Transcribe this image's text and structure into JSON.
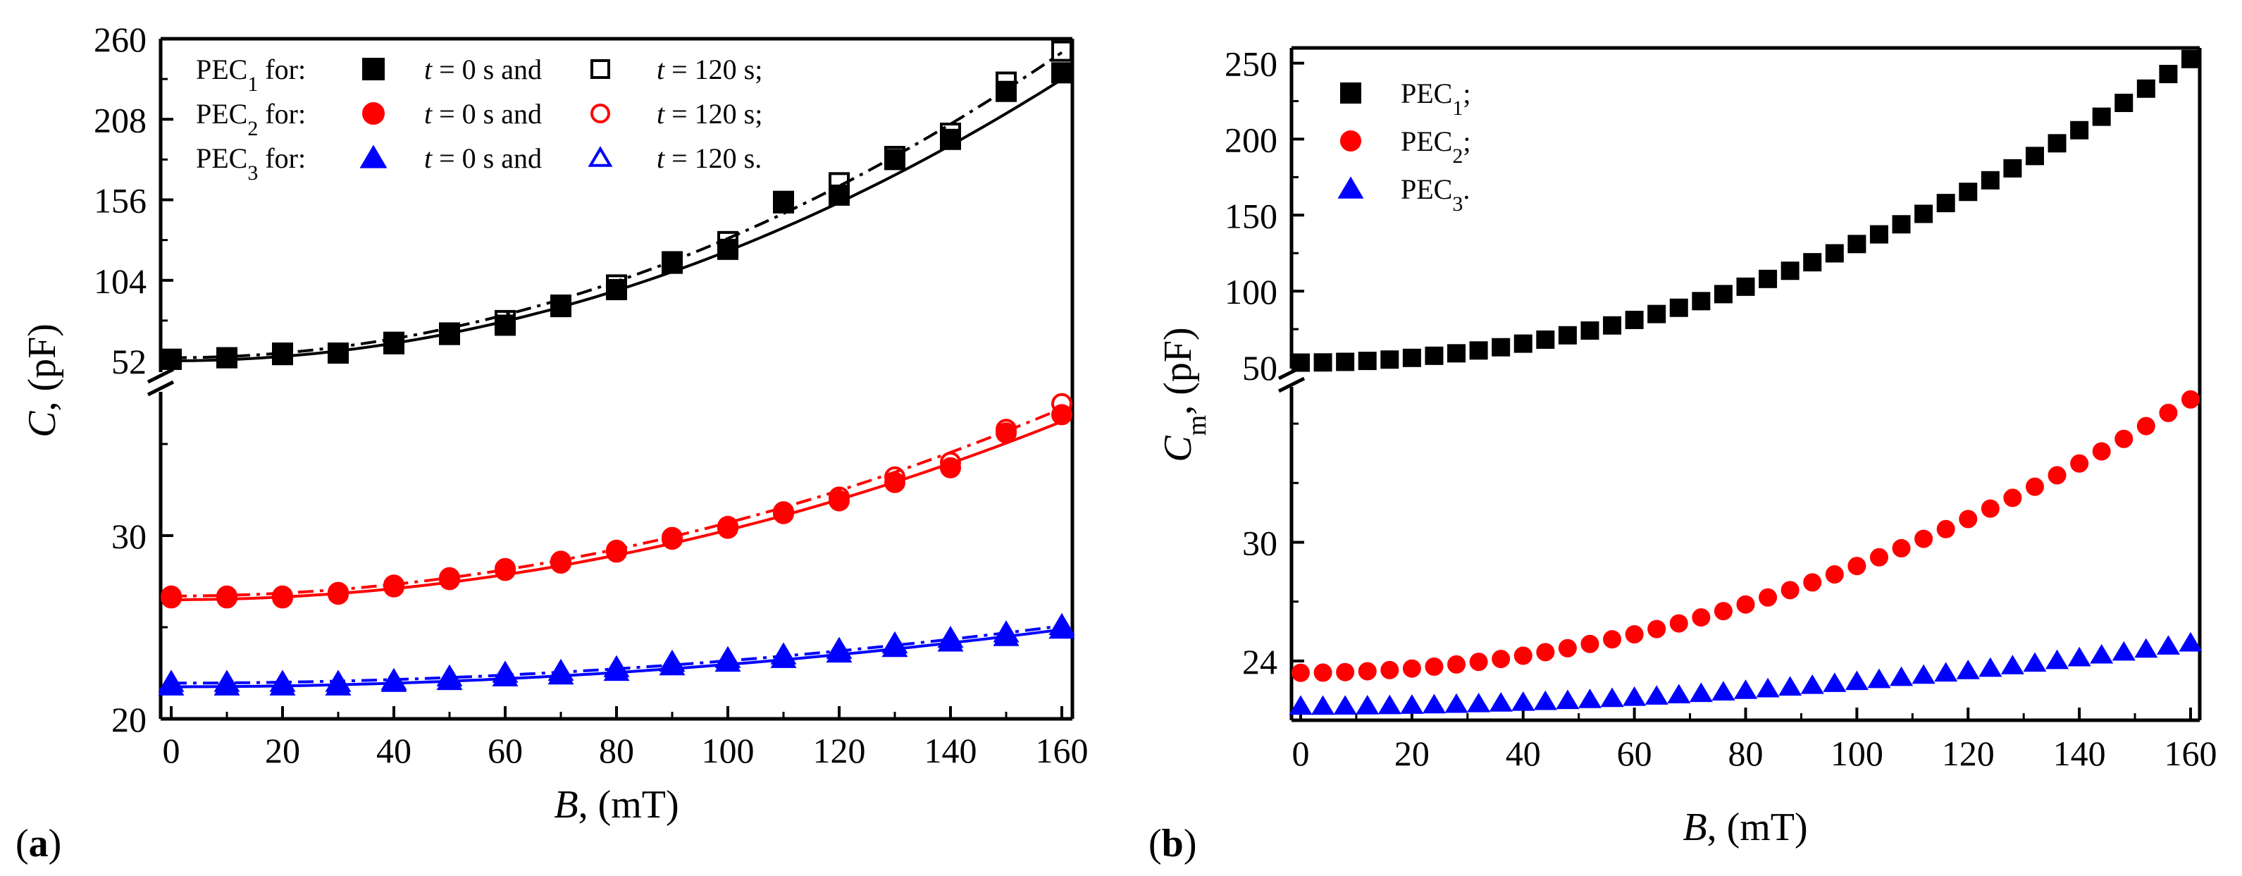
{
  "chart_data": [
    {
      "panel": "(a)",
      "type": "scatter",
      "xlabel": {
        "var": "B",
        "rest": ", (mT)"
      },
      "ylabel": {
        "var": "C",
        "rest": ", (pF)"
      },
      "xlim": [
        0,
        160
      ],
      "xticks": [
        "0",
        "20",
        "40",
        "60",
        "80",
        "100",
        "120",
        "140",
        "160"
      ],
      "upper": {
        "ylim": [
          52,
          260
        ],
        "yticks": [
          "52",
          "104",
          "156",
          "208",
          "260"
        ]
      },
      "lower": {
        "ylim": [
          20,
          38
        ],
        "yticks": [
          "20",
          "30"
        ]
      },
      "x": [
        0,
        10,
        20,
        30,
        40,
        50,
        60,
        70,
        80,
        90,
        100,
        110,
        120,
        130,
        140,
        150,
        160
      ],
      "legend": [
        {
          "label_main": "PEC",
          "label_sub": "1",
          "label_rest": " for:",
          "t_var": "t",
          "t0_rest": " = 0 s and",
          "t120_rest": " = 120 s;",
          "color": "#000000",
          "marker": "square"
        },
        {
          "label_main": "PEC",
          "label_sub": "2",
          "label_rest": " for:",
          "t_var": "t",
          "t0_rest": " = 0 s and",
          "t120_rest": " = 120 s;",
          "color": "#ff0000",
          "marker": "circle"
        },
        {
          "label_main": "PEC",
          "label_sub": "3",
          "label_rest": " for:",
          "t_var": "t",
          "t0_rest": " = 0 s and",
          "t120_rest": " = 120 s.",
          "color": "#0000ff",
          "marker": "triangle"
        }
      ],
      "series": [
        {
          "name": "PEC1, t = 0 s",
          "color": "#000000",
          "marker": "square",
          "filled": true,
          "axis": "upper",
          "values": [
            53,
            54,
            56,
            57,
            63,
            69,
            75,
            87,
            98,
            115,
            124,
            154,
            159,
            182,
            195,
            226,
            238
          ]
        },
        {
          "name": "PEC1, t = 120 s",
          "color": "#000000",
          "marker": "square",
          "filled": false,
          "axis": "upper",
          "values": [
            53,
            54,
            57,
            57,
            64,
            70,
            78,
            88,
            101,
            116,
            129,
            155,
            167,
            184,
            199,
            232,
            252
          ]
        },
        {
          "name": "PEC2, t = 0 s",
          "color": "#ff0000",
          "marker": "circle",
          "filled": true,
          "axis": "lower",
          "values": [
            26.6,
            26.6,
            26.6,
            26.8,
            27.2,
            27.6,
            28.1,
            28.5,
            29.1,
            29.8,
            30.4,
            31.2,
            31.9,
            32.9,
            33.7,
            35.6,
            36.6
          ]
        },
        {
          "name": "PEC2, t = 120 s",
          "color": "#ff0000",
          "marker": "circle",
          "filled": false,
          "axis": "lower",
          "values": [
            26.7,
            26.7,
            26.7,
            26.9,
            27.3,
            27.7,
            28.2,
            28.6,
            29.2,
            29.9,
            30.5,
            31.3,
            32.1,
            33.2,
            34.0,
            35.8,
            37.2
          ]
        },
        {
          "name": "PEC3, t = 0 s",
          "color": "#0000ff",
          "marker": "triangle",
          "filled": true,
          "axis": "lower",
          "values": [
            21.8,
            21.8,
            21.8,
            21.8,
            22.0,
            22.1,
            22.3,
            22.4,
            22.6,
            22.9,
            23.1,
            23.3,
            23.6,
            23.9,
            24.2,
            24.5,
            24.9
          ]
        },
        {
          "name": "PEC3, t = 120 s",
          "color": "#0000ff",
          "marker": "triangle",
          "filled": false,
          "axis": "lower",
          "values": [
            22.0,
            22.0,
            22.0,
            22.0,
            22.1,
            22.3,
            22.5,
            22.6,
            22.8,
            23.1,
            23.3,
            23.5,
            23.8,
            24.1,
            24.4,
            24.7,
            25.1
          ]
        }
      ],
      "fits": [
        {
          "name": "PEC1 fit t = 0 s",
          "color": "#000000",
          "style": "solid",
          "axis": "upper",
          "y0": 52,
          "k": 0.0071
        },
        {
          "name": "PEC1 fit t = 120 s",
          "color": "#000000",
          "style": "dashdot",
          "axis": "upper",
          "y0": 54,
          "k": 0.0077
        },
        {
          "name": "PEC2 fit t = 0 s",
          "color": "#ff0000",
          "style": "solid",
          "axis": "lower",
          "y0": 26.5,
          "k": 0.00038
        },
        {
          "name": "PEC2 fit t = 120 s",
          "color": "#ff0000",
          "style": "dashdot",
          "axis": "lower",
          "y0": 26.7,
          "k": 0.0004
        },
        {
          "name": "PEC3 fit t = 0 s",
          "color": "#0000ff",
          "style": "solid",
          "axis": "lower",
          "y0": 21.75,
          "k": 0.000122
        },
        {
          "name": "PEC3 fit t = 120 s",
          "color": "#0000ff",
          "style": "dashdot",
          "axis": "lower",
          "y0": 21.95,
          "k": 0.000122
        }
      ]
    },
    {
      "panel": "(b)",
      "type": "scatter",
      "xlabel": {
        "var": "B",
        "rest": ", (mT)"
      },
      "ylabel": {
        "var": "C",
        "sub": "m",
        "rest": ", (pF)"
      },
      "xlim": [
        0,
        160
      ],
      "xticks": [
        "0",
        "20",
        "40",
        "60",
        "80",
        "100",
        "120",
        "140",
        "160"
      ],
      "upper": {
        "ylim": [
          50,
          260
        ],
        "yticks": [
          "50",
          "100",
          "150",
          "200",
          "250"
        ]
      },
      "lower": {
        "ylim": [
          21,
          38
        ],
        "yticks": [
          "24",
          "30"
        ]
      },
      "legend": [
        {
          "label_main": "PEC",
          "label_sub": "1",
          "label_rest": ";",
          "color": "#000000",
          "marker": "square"
        },
        {
          "label_main": "PEC",
          "label_sub": "2",
          "label_rest": ";",
          "color": "#ff0000",
          "marker": "circle"
        },
        {
          "label_main": "PEC",
          "label_sub": "3",
          "label_rest": ".",
          "color": "#0000ff",
          "marker": "triangle"
        }
      ],
      "series": [
        {
          "name": "PEC1",
          "color": "#000000",
          "marker": "square",
          "axis": "upper",
          "y0": 53,
          "k": 0.0078
        },
        {
          "name": "PEC2",
          "color": "#ff0000",
          "marker": "circle",
          "axis": "lower",
          "y0": 23.4,
          "k": 0.00054
        },
        {
          "name": "PEC3",
          "color": "#0000ff",
          "marker": "triangle",
          "axis": "lower",
          "y0": 21.7,
          "k": 0.000125
        }
      ],
      "x_start": 0,
      "x_end": 160,
      "x_step": 4
    }
  ]
}
